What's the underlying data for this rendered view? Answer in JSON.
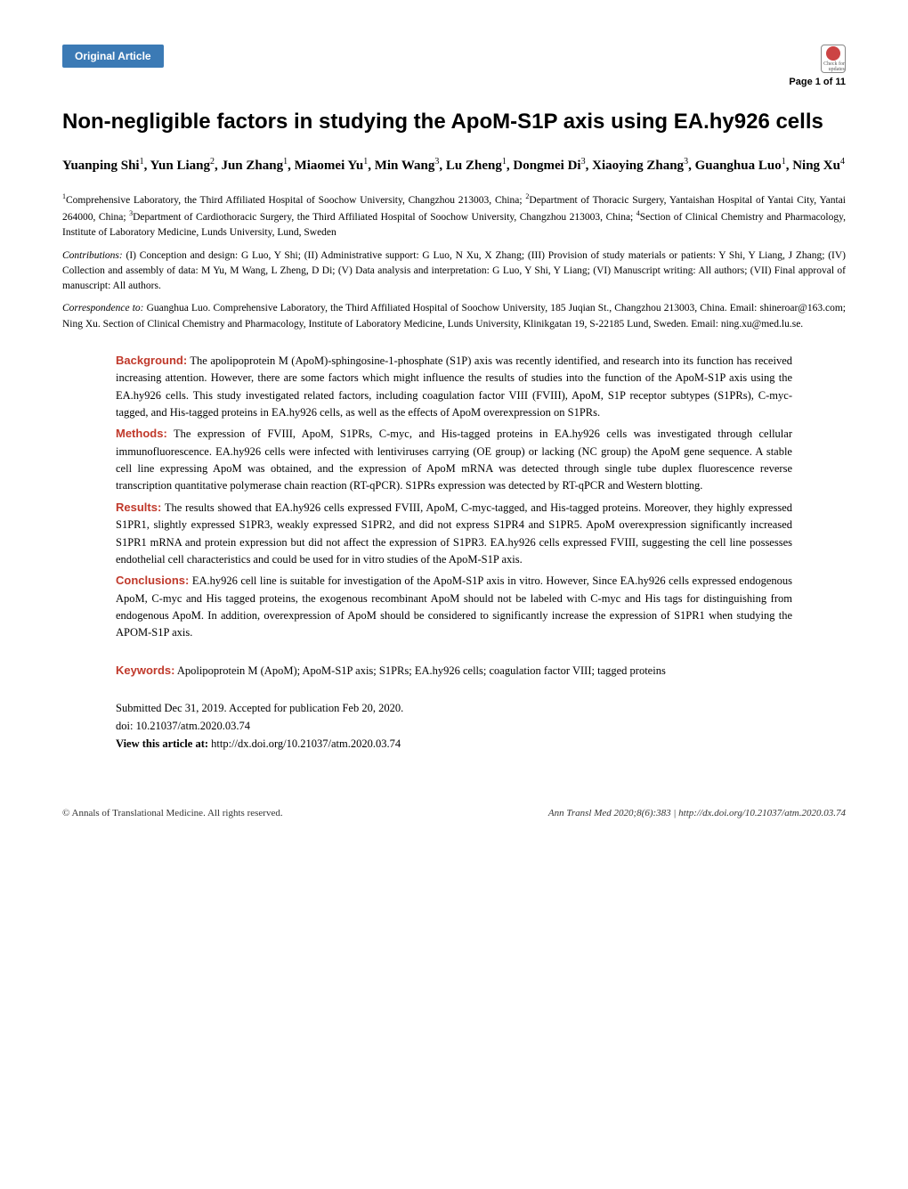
{
  "header": {
    "badge": "Original Article",
    "page_number": "Page 1 of 11",
    "check_label": "Check for updates"
  },
  "title": "Non-negligible factors in studying the ApoM-S1P axis using EA.hy926 cells",
  "authors_html": "Yuanping Shi<sup>1</sup>, Yun Liang<sup>2</sup>, Jun Zhang<sup>1</sup>, Miaomei Yu<sup>1</sup>, Min Wang<sup>3</sup>, Lu Zheng<sup>1</sup>, Dongmei Di<sup>3</sup>, Xiaoying Zhang<sup>3</sup>, Guanghua Luo<sup>1</sup>, Ning Xu<sup>4</sup>",
  "affiliations_html": "<sup>1</sup>Comprehensive Laboratory, the Third Affiliated Hospital of Soochow University, Changzhou 213003, China; <sup>2</sup>Department of Thoracic Surgery, Yantaishan Hospital of Yantai City, Yantai 264000, China; <sup>3</sup>Department of Cardiothoracic Surgery, the Third Affiliated Hospital of Soochow University, Changzhou 213003, China; <sup>4</sup>Section of Clinical Chemistry and Pharmacology, Institute of Laboratory Medicine, Lunds University, Lund, Sweden",
  "contributions": "(I) Conception and design: G Luo, Y Shi; (II) Administrative support: G Luo, N Xu, X Zhang; (III) Provision of study materials or patients: Y Shi, Y Liang, J Zhang; (IV) Collection and assembly of data: M Yu, M Wang, L Zheng, D Di; (V) Data analysis and interpretation: G Luo, Y Shi, Y Liang; (VI) Manuscript writing: All authors; (VII) Final approval of manuscript: All authors.",
  "contributions_label": "Contributions:",
  "correspondence_label": "Correspondence to:",
  "correspondence": " Guanghua Luo. Comprehensive Laboratory, the Third Affiliated Hospital of Soochow University, 185 Juqian St., Changzhou 213003, China. Email: shineroar@163.com; Ning Xu. Section of Clinical Chemistry and Pharmacology, Institute of Laboratory Medicine, Lunds University, Klinikgatan 19, S-22185 Lund, Sweden. Email: ning.xu@med.lu.se.",
  "abstract": {
    "background_label": "Background:",
    "background": " The apolipoprotein M (ApoM)-sphingosine-1-phosphate (S1P) axis was recently identified, and research into its function has received increasing attention. However, there are some factors which might influence the results of studies into the function of the ApoM-S1P axis using the EA.hy926 cells. This study investigated related factors, including coagulation factor VIII (FVIII), ApoM, S1P receptor subtypes (S1PRs), C-myc-tagged, and His-tagged proteins in EA.hy926 cells, as well as the effects of ApoM overexpression on S1PRs.",
    "methods_label": "Methods:",
    "methods": " The expression of FVIII, ApoM, S1PRs, C-myc, and His-tagged proteins in EA.hy926 cells was investigated through cellular immunofluorescence. EA.hy926 cells were infected with lentiviruses carrying (OE group) or lacking (NC group) the ApoM gene sequence. A stable cell line expressing ApoM was obtained, and the expression of ApoM mRNA was detected through single tube duplex fluorescence reverse transcription quantitative polymerase chain reaction (RT-qPCR). S1PRs expression was detected by RT-qPCR and Western blotting.",
    "results_label": "Results:",
    "results": " The results showed that EA.hy926 cells expressed FVIII, ApoM, C-myc-tagged, and His-tagged proteins. Moreover, they highly expressed S1PR1, slightly expressed S1PR3, weakly expressed S1PR2, and did not express S1PR4 and S1PR5. ApoM overexpression significantly increased S1PR1 mRNA and protein expression but did not affect the expression of S1PR3. EA.hy926 cells expressed FVIII, suggesting the cell line possesses endothelial cell characteristics and could be used for in vitro studies of the ApoM-S1P axis.",
    "conclusions_label": "Conclusions:",
    "conclusions": " EA.hy926 cell line is suitable for investigation of the ApoM-S1P axis in vitro. However, Since EA.hy926 cells expressed endogenous ApoM, C-myc and His tagged proteins, the exogenous recombinant ApoM should not be labeled with C-myc and His tags for distinguishing from endogenous ApoM. In addition, overexpression of ApoM should be considered to significantly increase the expression of S1PR1 when studying the APOM-S1P axis.",
    "keywords_label": "Keywords:",
    "keywords": " Apolipoprotein M (ApoM); ApoM-S1P axis; S1PRs; EA.hy926 cells; coagulation factor VIII; tagged proteins"
  },
  "meta": {
    "submitted": "Submitted Dec 31, 2019. Accepted for publication Feb 20, 2020.",
    "doi": "doi: 10.21037/atm.2020.03.74",
    "view_label": "View this article at:",
    "view_url": " http://dx.doi.org/10.21037/atm.2020.03.74"
  },
  "footer": {
    "left": "© Annals of Translational Medicine. All rights reserved.",
    "center": "Ann Transl Med 2020;8(6):383 | http://dx.doi.org/10.21037/atm.2020.03.74"
  },
  "colors": {
    "badge_bg": "#3b7ab5",
    "section_label": "#c0392b",
    "text": "#000000",
    "bg": "#ffffff"
  },
  "typography": {
    "title_fontsize": 24,
    "author_fontsize": 15,
    "body_fontsize": 13,
    "small_fontsize": 11.5,
    "abstract_fontsize": 12.5,
    "footer_fontsize": 11
  }
}
